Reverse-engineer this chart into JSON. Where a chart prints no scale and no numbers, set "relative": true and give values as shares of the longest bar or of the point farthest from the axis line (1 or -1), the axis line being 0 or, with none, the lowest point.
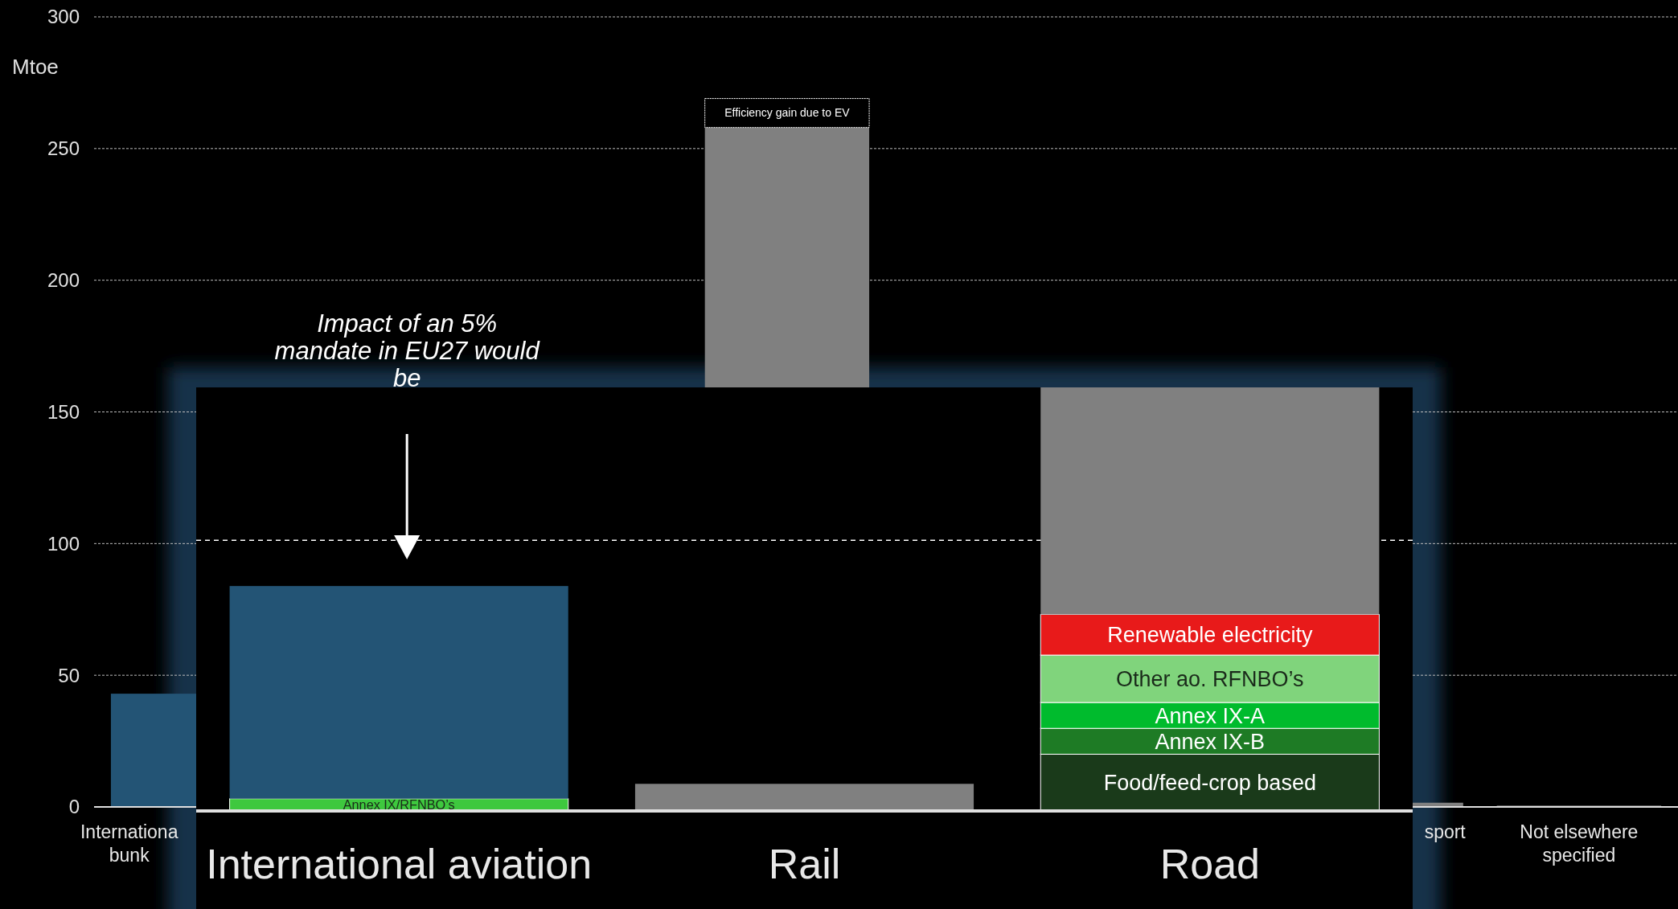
{
  "chart_data": [
    {
      "type": "bar",
      "ylabel": "Mtoe",
      "categories": [
        "Internationa\nbunk",
        null,
        null,
        null,
        null,
        null,
        "sport",
        "Not elsewhere\nspecified"
      ],
      "stacked": true,
      "ylim": [
        0,
        300
      ],
      "yticks": [
        0,
        50,
        100,
        150,
        200,
        250,
        300
      ],
      "grid": "y",
      "legend": false,
      "series": [
        {
          "colors": [
            "#235475",
            null,
            null,
            "#808080",
            null,
            null,
            "#808080",
            "#808080"
          ],
          "values": [
            43,
            null,
            null,
            258,
            null,
            null,
            1.6,
            0.5
          ]
        },
        {
          "name": "Efficiency gain due to EV",
          "color": "#000000",
          "values": [
            null,
            null,
            null,
            11,
            null,
            null,
            null,
            null
          ]
        }
      ]
    },
    {
      "type": "bar",
      "categories": [
        "International aviation",
        "Rail",
        "Road"
      ],
      "stacked": true,
      "relative": true,
      "tick_labels": "x",
      "legend": false,
      "ref_lines": [
        {
          "axis": "y",
          "value": 0.639,
          "line_style": "dashed",
          "color": "#ffffff"
        }
      ],
      "annotations": [
        "Impact of an 5% mandate in EU27 would be"
      ],
      "series": [
        {
          "name": "Annex IX/RFNBO’s",
          "color": "#3ec83e",
          "values": [
            0.029,
            null,
            null
          ]
        },
        {
          "name": "Food/feed-crop based",
          "color": "#1a3a1a",
          "values": [
            null,
            null,
            0.134
          ]
        },
        {
          "name": "Annex IX-B",
          "color": "#1e7b25",
          "values": [
            null,
            null,
            0.061
          ]
        },
        {
          "name": "Annex IX-A",
          "color": "#00bb2d",
          "values": [
            null,
            null,
            0.061
          ]
        },
        {
          "name": "Other ao. RFNBO’s",
          "color": "#80d47c",
          "values": [
            null,
            null,
            0.112
          ]
        },
        {
          "name": "Renewable electricity",
          "color": "#e81a1a",
          "values": [
            null,
            null,
            0.096
          ]
        },
        {
          "color": "#235475",
          "values": [
            0.502,
            null,
            null
          ]
        },
        {
          "color": "#808080",
          "values": [
            null,
            0.064,
            0.536
          ]
        }
      ]
    }
  ]
}
